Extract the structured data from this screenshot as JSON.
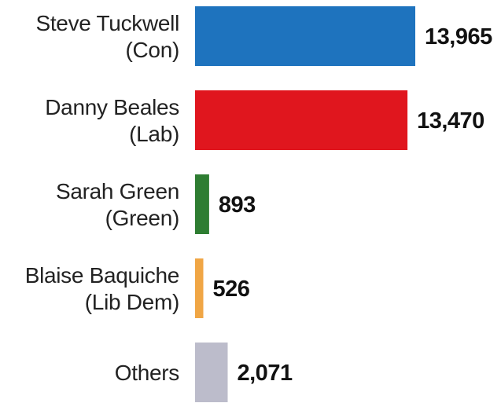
{
  "chart_data": {
    "type": "bar",
    "orientation": "horizontal",
    "categories": [
      [
        "Steve Tuckwell",
        "(Con)"
      ],
      [
        "Danny Beales",
        "(Lab)"
      ],
      [
        "Sarah Green",
        "(Green)"
      ],
      [
        "Blaise Baquiche",
        "(Lib Dem)"
      ],
      [
        "Others"
      ]
    ],
    "values": [
      13965,
      13470,
      893,
      526,
      2071
    ],
    "value_labels": [
      "13,965",
      "13,470",
      "893",
      "526",
      "2,071"
    ],
    "colors": [
      "#1e73be",
      "#e0161e",
      "#2e7d32",
      "#f0a645",
      "#bcbccb"
    ],
    "xlim": [
      0,
      13965
    ],
    "grid": false,
    "legend": "none"
  }
}
